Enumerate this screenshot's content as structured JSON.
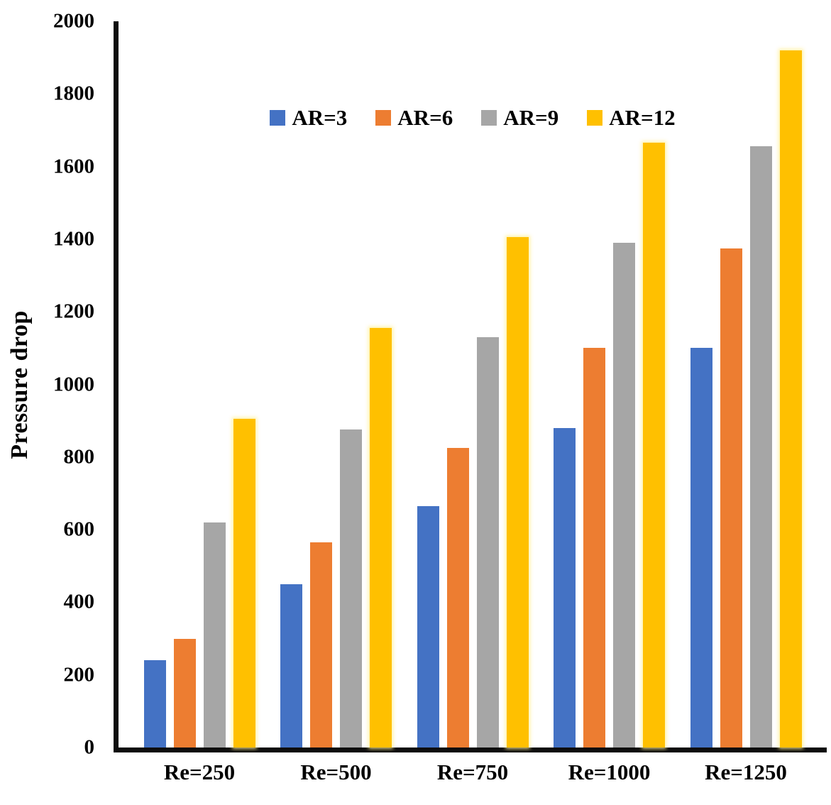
{
  "y_axis": {
    "label": "Pressure drop",
    "ticks": [
      0,
      200,
      400,
      600,
      800,
      1000,
      1200,
      1400,
      1600,
      1800,
      2000
    ]
  },
  "chart_data": {
    "type": "bar",
    "title": "",
    "xlabel": "",
    "ylabel": "Pressure drop",
    "ylim": [
      0,
      2000
    ],
    "grid": false,
    "legend_position": "top-center",
    "categories": [
      "Re=250",
      "Re=500",
      "Re=750",
      "Re=1000",
      "Re=1250"
    ],
    "series": [
      {
        "name": "AR=3",
        "color": "#4472C4",
        "values": [
          240,
          450,
          665,
          880,
          1100
        ]
      },
      {
        "name": "AR=6",
        "color": "#ED7D31",
        "values": [
          300,
          565,
          825,
          1100,
          1375
        ]
      },
      {
        "name": "AR=9",
        "color": "#A6A6A6",
        "values": [
          620,
          875,
          1130,
          1390,
          1655
        ]
      },
      {
        "name": "AR=12",
        "color": "#FFC000",
        "values": [
          905,
          1155,
          1405,
          1665,
          1920
        ]
      }
    ]
  }
}
